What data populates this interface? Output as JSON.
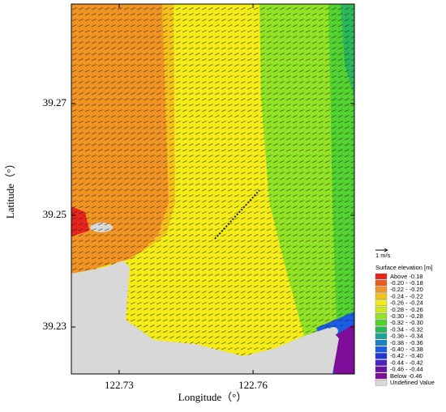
{
  "map": {
    "x_axis": {
      "label": "Longitude（°）",
      "xlim": [
        122.7193,
        122.7827
      ],
      "xticks": [
        122.73,
        122.76
      ]
    },
    "y_axis": {
      "label": "Latitude（°）",
      "ylim": [
        39.2216,
        39.2878
      ],
      "yticks": [
        39.27,
        39.25,
        39.23
      ]
    },
    "legend": {
      "scale_label": "1 m/s",
      "title": "Surface elevation [m]",
      "entries": [
        {
          "label": "Above -0.18",
          "color": "#e8231c"
        },
        {
          "label": "-0.20 - -0.18",
          "color": "#ee5a1c"
        },
        {
          "label": "-0.22 - -0.20",
          "color": "#f29422"
        },
        {
          "label": "-0.24 - -0.22",
          "color": "#f6c21a"
        },
        {
          "label": "-0.26 - -0.24",
          "color": "#f4ec14"
        },
        {
          "label": "-0.28 - -0.26",
          "color": "#cdeb1a"
        },
        {
          "label": "-0.30 - -0.28",
          "color": "#92e324"
        },
        {
          "label": "-0.32 - -0.30",
          "color": "#52d22e"
        },
        {
          "label": "-0.34 - -0.32",
          "color": "#2ab85a"
        },
        {
          "label": "-0.36 - -0.34",
          "color": "#1aa596"
        },
        {
          "label": "-0.38 - -0.36",
          "color": "#1884c8"
        },
        {
          "label": "-0.40 - -0.38",
          "color": "#1a5ce2"
        },
        {
          "label": "-0.42 - -0.40",
          "color": "#2036d8"
        },
        {
          "label": "-0.44 - -0.42",
          "color": "#4a22c0"
        },
        {
          "label": "-0.46 - -0.44",
          "color": "#6a12a8"
        },
        {
          "label": "Below -0.46",
          "color": "#7e0e9a"
        },
        {
          "label": "Undefined Value",
          "color": "#d8d8d8"
        }
      ]
    }
  }
}
